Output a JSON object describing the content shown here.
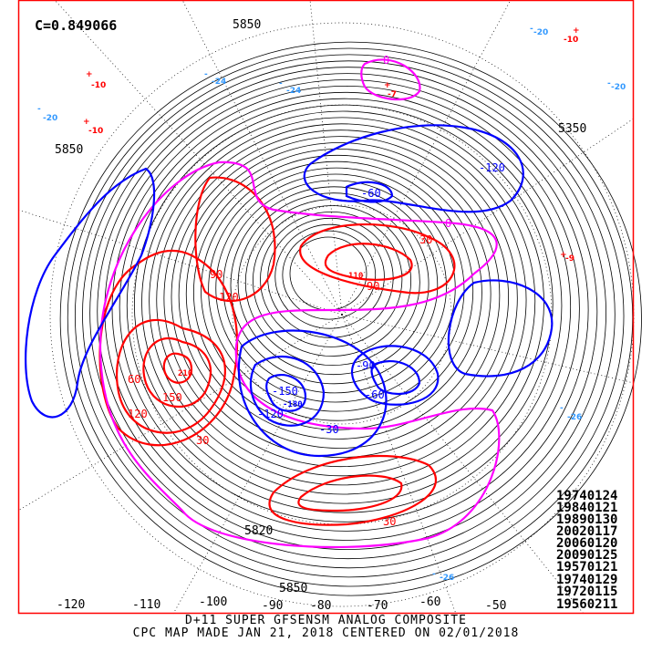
{
  "map": {
    "correlation": "C=0.849066",
    "title_line1": "D+11 SUPER GFSENSM ANALOG COMPOSITE",
    "title_line2": "CPC MAP MADE JAN 21, 2018 CENTERED ON 02/01/2018",
    "frame_color": "#ff0000",
    "positive_anomaly_color": "#ff0000",
    "negative_anomaly_color": "#0000ff",
    "zero_anomaly_color": "#ff00ff",
    "marker_negative_color": "#3399ff",
    "longitude_labels": [
      "-120",
      "-110",
      "-100",
      "-90",
      "-80",
      "-70",
      "-60",
      "-50"
    ],
    "height_labels": [
      "5850",
      "5850",
      "5350",
      "5820",
      "5850"
    ],
    "anomaly_labels": [
      "30",
      "60",
      "90",
      "120",
      "150",
      "210",
      "110",
      "-30",
      "-60",
      "-90",
      "-120",
      "-150",
      "-180",
      "0",
      "0",
      "30",
      "90",
      "120",
      "30",
      "-60",
      "-120"
    ],
    "analog_dates": [
      "19740124",
      "19840121",
      "19890130",
      "20020117",
      "20060120",
      "20090125",
      "19570121",
      "19740129",
      "19720115",
      "19560211"
    ],
    "markers": [
      {
        "sign": "+",
        "value": "-10"
      },
      {
        "sign": "-",
        "value": "-20"
      },
      {
        "sign": "+",
        "value": "-10"
      },
      {
        "sign": "-",
        "value": "-24"
      },
      {
        "sign": "-",
        "value": "-24"
      },
      {
        "sign": "+",
        "value": "-10"
      },
      {
        "sign": "-",
        "value": "-20"
      },
      {
        "sign": "-",
        "value": "-20"
      },
      {
        "sign": "+",
        "value": "-7"
      },
      {
        "sign": "-",
        "value": "-26"
      },
      {
        "sign": "-",
        "value": "-26"
      },
      {
        "sign": "+",
        "value": "-9"
      }
    ]
  }
}
